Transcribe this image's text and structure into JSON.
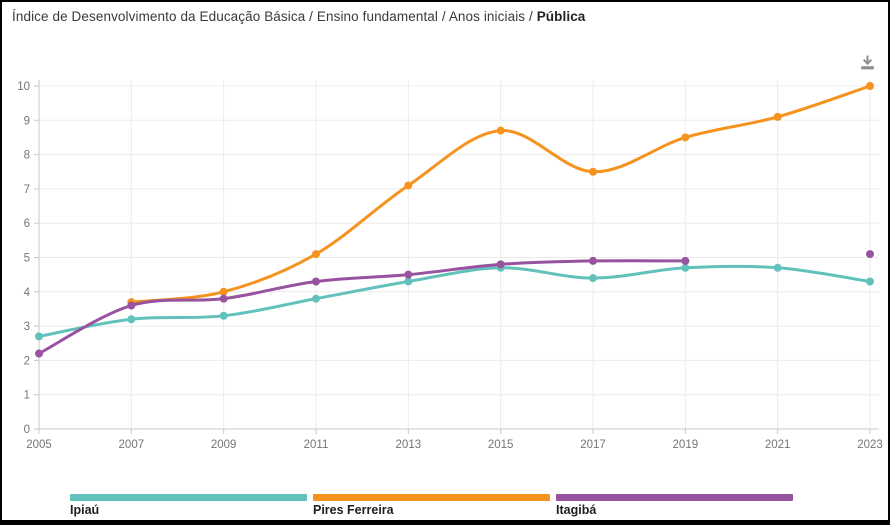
{
  "header": {
    "title_prefix": "Índice de Desenvolvimento da Educação Básica / Ensino fundamental / Anos iniciais / ",
    "title_bold": "Pública"
  },
  "chart_data": {
    "type": "line",
    "title": "Índice de Desenvolvimento da Educação Básica / Ensino fundamental / Anos iniciais / Pública",
    "x": [
      "2005",
      "2007",
      "2009",
      "2011",
      "2013",
      "2015",
      "2017",
      "2019",
      "2021",
      "2023"
    ],
    "series": [
      {
        "name": "Ipiaú",
        "color": "#62C2BB",
        "values": [
          2.7,
          3.2,
          3.3,
          3.8,
          4.3,
          4.7,
          4.4,
          4.7,
          4.7,
          4.3
        ]
      },
      {
        "name": "Pires Ferreira",
        "color": "#F6921E",
        "values": [
          null,
          3.7,
          4.0,
          5.1,
          7.1,
          8.7,
          7.5,
          8.5,
          9.1,
          10.0
        ]
      },
      {
        "name": "Itagibá",
        "color": "#9853A0",
        "values": [
          2.2,
          3.6,
          3.8,
          4.3,
          4.5,
          4.8,
          4.9,
          4.9,
          null,
          5.1
        ]
      }
    ],
    "ylim": [
      0,
      10
    ],
    "y_ticks": [
      0,
      1,
      2,
      3,
      4,
      5,
      6,
      7,
      8,
      9,
      10
    ],
    "xlabel": "",
    "ylabel": "",
    "grid": true,
    "smooth": true,
    "legend_position": "bottom"
  },
  "colors": {
    "axis": "#c9c9c9",
    "grid": "#ececec",
    "tick_label": "#757575",
    "title_text": "#3a3a3a",
    "download_icon": "#8d8d8d"
  }
}
